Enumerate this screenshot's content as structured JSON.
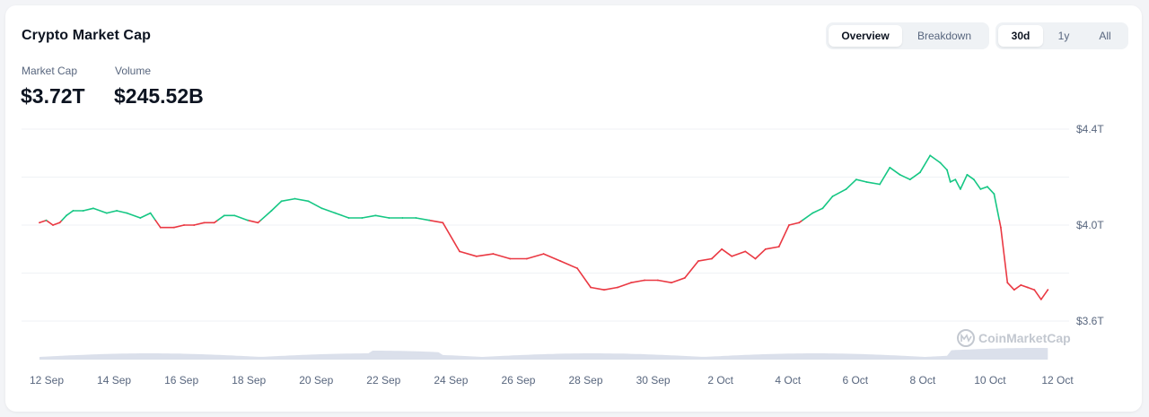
{
  "header": {
    "title": "Crypto Market Cap",
    "view_tabs": [
      "Overview",
      "Breakdown"
    ],
    "active_view": "Overview",
    "range_tabs": [
      "30d",
      "1y",
      "All"
    ],
    "active_range": "30d"
  },
  "metrics": [
    {
      "label": "Market Cap",
      "value": "$3.72T"
    },
    {
      "label": "Volume",
      "value": "$245.52B"
    }
  ],
  "watermark": "CoinMarketCap",
  "colors": {
    "up": "#16c784",
    "down": "#ea3943",
    "volume": "#cfd6e4",
    "grid": "#eff2f5"
  },
  "chart_data": {
    "type": "line",
    "title": "Crypto Market Cap",
    "x_tick_labels": [
      "12 Sep",
      "14 Sep",
      "16 Sep",
      "18 Sep",
      "20 Sep",
      "22 Sep",
      "24 Sep",
      "26 Sep",
      "28 Sep",
      "30 Sep",
      "2 Oct",
      "4 Oct",
      "6 Oct",
      "8 Oct",
      "10 Oct",
      "12 Oct"
    ],
    "y_tick_labels": [
      "$4.4T",
      "$4.0T",
      "$3.6T"
    ],
    "y_ticks": [
      4.4,
      4.0,
      3.6
    ],
    "ylim": [
      3.6,
      4.4
    ],
    "x_range": [
      0,
      30.5
    ],
    "baseline": 4.02,
    "series": [
      {
        "x": [
          0,
          0.2,
          0.4,
          0.6,
          0.8,
          1.0,
          1.3,
          1.6,
          2.0,
          2.3,
          2.6,
          3.0,
          3.3,
          3.6,
          4.0,
          4.3,
          4.6,
          4.9,
          5.2,
          5.5,
          5.8,
          6.2,
          6.5,
          6.9,
          7.2,
          7.6,
          8.0,
          8.4,
          8.8,
          9.2,
          9.6,
          10.0,
          10.4,
          10.8,
          11.2,
          11.6,
          12.0,
          12.5,
          13.0,
          13.5,
          14.0,
          14.5,
          15.0,
          15.5,
          16.0,
          16.4,
          16.8,
          17.2,
          17.6,
          18.0,
          18.4,
          18.8,
          19.2,
          19.6,
          20.0,
          20.3,
          20.6,
          21.0,
          21.3,
          21.6,
          22.0,
          22.3,
          22.6,
          23.0,
          23.3,
          23.6,
          24.0,
          24.3,
          24.6,
          25.0,
          25.3,
          25.6,
          25.9,
          26.2,
          26.5,
          26.8,
          27.0,
          27.1,
          27.25,
          27.4,
          27.6,
          27.8,
          28.0,
          28.2,
          28.4,
          28.6,
          28.8,
          29.0,
          29.2,
          29.4,
          29.6,
          29.8,
          30.0
        ],
        "y": [
          4.01,
          4.02,
          4.0,
          4.01,
          4.04,
          4.06,
          4.06,
          4.07,
          4.05,
          4.06,
          4.05,
          4.03,
          4.05,
          3.99,
          3.99,
          4.0,
          4.0,
          4.01,
          4.01,
          4.04,
          4.04,
          4.02,
          4.01,
          4.06,
          4.1,
          4.11,
          4.1,
          4.07,
          4.05,
          4.03,
          4.03,
          4.04,
          4.03,
          4.03,
          4.03,
          4.02,
          4.01,
          3.89,
          3.87,
          3.88,
          3.86,
          3.86,
          3.88,
          3.85,
          3.82,
          3.74,
          3.73,
          3.74,
          3.76,
          3.77,
          3.77,
          3.76,
          3.78,
          3.85,
          3.86,
          3.9,
          3.87,
          3.89,
          3.86,
          3.9,
          3.91,
          4.0,
          4.01,
          4.05,
          4.07,
          4.12,
          4.15,
          4.19,
          4.18,
          4.17,
          4.24,
          4.21,
          4.19,
          4.22,
          4.29,
          4.26,
          4.23,
          4.18,
          4.19,
          4.15,
          4.21,
          4.19,
          4.15,
          4.16,
          4.13,
          3.99,
          3.76,
          3.73,
          3.75,
          3.74,
          3.73,
          3.69,
          3.73
        ]
      }
    ],
    "volume": "area",
    "grid": true,
    "legend": "none"
  }
}
